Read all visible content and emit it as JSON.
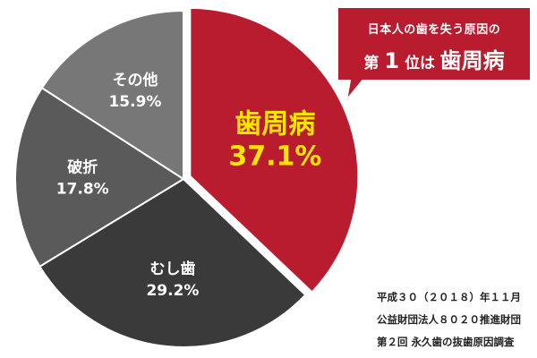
{
  "chart_data": {
    "type": "pie",
    "slices": [
      {
        "label": "歯周病",
        "value": 37.1,
        "value_label": "37.1%",
        "color": "#b81c2e",
        "text_color": "#ffe600"
      },
      {
        "label": "むし歯",
        "value": 29.2,
        "value_label": "29.2%",
        "color": "#3a3a3a",
        "text_color": "#ffffff"
      },
      {
        "label": "破折",
        "value": 17.8,
        "value_label": "17.8%",
        "color": "#5a5a5a",
        "text_color": "#ffffff"
      },
      {
        "label": "その他",
        "value": 15.9,
        "value_label": "15.9%",
        "color": "#777777",
        "text_color": "#ffffff"
      }
    ],
    "highlight": "歯周病"
  },
  "callout": {
    "line1": "日本人の歯を失う原因の",
    "line2_a": "第",
    "line2_num": "1",
    "line2_b": "位は",
    "line2_c": "歯周病",
    "color": "#b81c2e"
  },
  "source": {
    "line1": "平成３０（２０１８）年１１月",
    "line2": "公益財団法人８０２０推進財団",
    "line3": "第２回 永久歯の抜歯原因調査"
  }
}
